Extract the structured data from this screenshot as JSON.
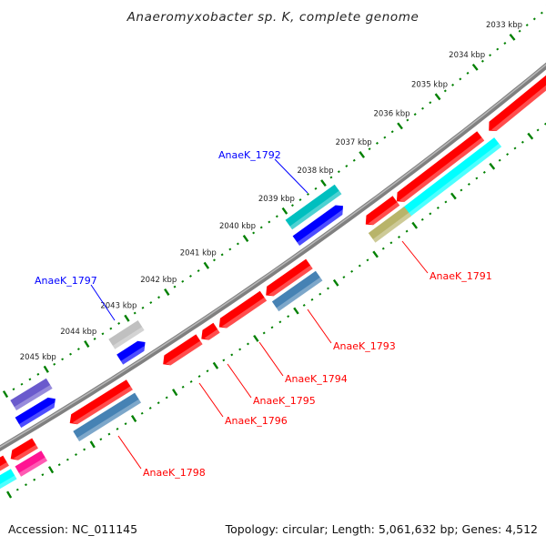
{
  "title": "Anaeromyxobacter sp. K, complete genome",
  "footer": {
    "accession": "Accession: NC_011145",
    "summary": "Topology: circular; Length: 5,061,632 bp; Genes: 4,512"
  },
  "ruler": {
    "start_kbp": 2032,
    "end_kbp": 2047,
    "minor_step_kbp": 0.2,
    "label_suffix": " kbp",
    "color": "#008000",
    "labels": [
      "2033 kbp",
      "2034 kbp",
      "2035 kbp",
      "2036 kbp",
      "2037 kbp",
      "2038 kbp",
      "2039 kbp",
      "2040 kbp",
      "2041 kbp",
      "2042 kbp",
      "2043 kbp",
      "2044 kbp",
      "2045 kbp"
    ]
  },
  "backbone_color": "#808080",
  "genes": [
    {
      "start": 2031.5,
      "end": 2034.6,
      "lane": "rev",
      "color": "#ff0000",
      "arrow": true
    },
    {
      "start": 2034.8,
      "end": 2037.0,
      "lane": "rev",
      "color": "#ff0000",
      "arrow": true
    },
    {
      "start": 2037.0,
      "end": 2037.8,
      "lane": "rev",
      "color": "#ff0000",
      "arrow": true
    },
    {
      "start": 2039.22,
      "end": 2040.33,
      "lane": "rev",
      "color": "#ff0000",
      "arrow": true
    },
    {
      "start": 2040.38,
      "end": 2041.5,
      "lane": "rev",
      "color": "#ff0000",
      "arrow": true
    },
    {
      "start": 2041.55,
      "end": 2041.94,
      "lane": "rev",
      "color": "#ff0000",
      "arrow": true
    },
    {
      "start": 2041.98,
      "end": 2042.89,
      "lane": "rev",
      "color": "#ff0000",
      "arrow": true
    },
    {
      "start": 2043.7,
      "end": 2045.17,
      "lane": "rev",
      "color": "#ff0000",
      "arrow": true
    },
    {
      "start": 2046.0,
      "end": 2046.6,
      "lane": "rev",
      "color": "#ff0000",
      "arrow": true
    },
    {
      "start": 2046.7,
      "end": 2048.0,
      "lane": "rev",
      "color": "#ff0000",
      "arrow": true
    },
    {
      "start": 2034.6,
      "end": 2037.0,
      "lane": "rev2",
      "color": "#00ffff",
      "arrow": false
    },
    {
      "start": 2036.94,
      "end": 2037.86,
      "lane": "rev2",
      "color": "#b8b46a",
      "arrow": false
    },
    {
      "start": 2039.2,
      "end": 2040.3,
      "lane": "rev2",
      "color": "#4682b4",
      "arrow": false
    },
    {
      "start": 2043.7,
      "end": 2045.2,
      "lane": "rev2",
      "color": "#4682b4",
      "arrow": false
    },
    {
      "start": 2045.97,
      "end": 2046.6,
      "lane": "rev2",
      "color": "#ff1493",
      "arrow": false
    },
    {
      "start": 2046.7,
      "end": 2048.0,
      "lane": "rev2",
      "color": "#00ffff",
      "arrow": false
    },
    {
      "start": 2037.95,
      "end": 2039.17,
      "lane": "fwd",
      "color": "#0000ff",
      "arrow": true
    },
    {
      "start": 2042.95,
      "end": 2043.59,
      "lane": "fwd",
      "color": "#0000ff",
      "arrow": true
    },
    {
      "start": 2045.16,
      "end": 2046.08,
      "lane": "fwd",
      "color": "#0000ff",
      "arrow": true
    },
    {
      "start": 2037.83,
      "end": 2039.1,
      "lane": "fwd2",
      "color": "#00bfbf",
      "arrow": false
    },
    {
      "start": 2042.83,
      "end": 2043.56,
      "lane": "fwd2",
      "color": "#c0c0c0",
      "arrow": false
    },
    {
      "start": 2045.1,
      "end": 2045.98,
      "lane": "fwd2",
      "color": "#6a5acd",
      "arrow": false
    }
  ],
  "labels": [
    {
      "text": "AnaeK_1792",
      "color": "#0000ff"
    },
    {
      "text": "AnaeK_1797",
      "color": "#0000ff"
    },
    {
      "text": "AnaeK_1791",
      "color": "#ff0000"
    },
    {
      "text": "AnaeK_1793",
      "color": "#ff0000"
    },
    {
      "text": "AnaeK_1794",
      "color": "#ff0000"
    },
    {
      "text": "AnaeK_1795",
      "color": "#ff0000"
    },
    {
      "text": "AnaeK_1796",
      "color": "#ff0000"
    },
    {
      "text": "AnaeK_1798",
      "color": "#ff0000"
    }
  ]
}
